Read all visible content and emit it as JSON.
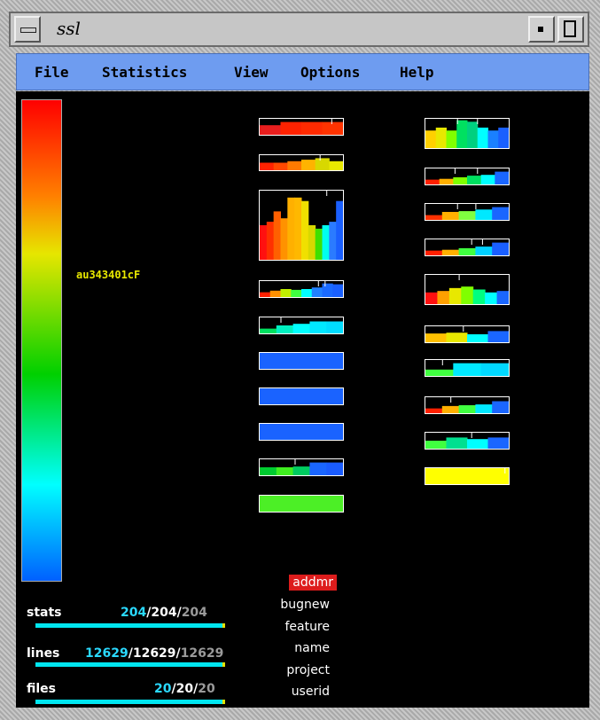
{
  "window": {
    "title": "ssl"
  },
  "menu": {
    "items": [
      "File",
      "Statistics",
      "View",
      "Options",
      "Help"
    ]
  },
  "colorbar": {
    "hover_label": "au343401cF",
    "gradient": [
      "#ff0000",
      "#ff8000",
      "#e6e600",
      "#00d000",
      "#00ffff",
      "#0060ff"
    ]
  },
  "legend": {
    "items": [
      "addmr",
      "bugnew",
      "feature",
      "name",
      "project",
      "userid"
    ],
    "selected": "addmr",
    "selected_color": "#dd1c1c"
  },
  "stats": [
    {
      "label": "stats",
      "a": "204",
      "b": "/204/",
      "c": "204",
      "fill": 1.0
    },
    {
      "label": "lines",
      "a": "12629",
      "b": "/12629/",
      "c": "12629",
      "fill": 1.0
    },
    {
      "label": "files",
      "a": "20",
      "b": "/20/",
      "c": "20",
      "fill": 1.0
    }
  ],
  "histograms": {
    "left": [
      {
        "bars": [
          [
            "#e81e1e",
            0.6
          ],
          [
            "#ff2200",
            0.8
          ],
          [
            "#ff2a00",
            0.8
          ],
          [
            "#ff3300",
            0.8
          ]
        ],
        "ticks": [
          0.86
        ]
      },
      {
        "bars": [
          [
            "#ff2200",
            0.5
          ],
          [
            "#ff4800",
            0.5
          ],
          [
            "#ff7a00",
            0.6
          ],
          [
            "#ffb300",
            0.7
          ],
          [
            "#d8d800",
            0.8
          ],
          [
            "#e8e800",
            0.6
          ]
        ],
        "ticks": [
          0.72
        ]
      },
      {
        "bars": [
          [
            "#ff1010",
            0.5
          ],
          [
            "#ff3000",
            0.55
          ],
          [
            "#ff6000",
            0.7
          ],
          [
            "#ff9200",
            0.6
          ],
          [
            "#ffb000",
            0.9
          ],
          [
            "#ffb800",
            0.9
          ],
          [
            "#f0e000",
            0.85
          ],
          [
            "#d8d800",
            0.5
          ],
          [
            "#40e000",
            0.45
          ],
          [
            "#00ffee",
            0.5
          ],
          [
            "#2b7bff",
            0.55
          ],
          [
            "#1a5fff",
            0.85
          ]
        ],
        "ticks": [
          0.8
        ]
      },
      {
        "bars": [
          [
            "#ff2000",
            0.3
          ],
          [
            "#ff9000",
            0.4
          ],
          [
            "#c0f000",
            0.5
          ],
          [
            "#40ff40",
            0.45
          ],
          [
            "#00ffff",
            0.5
          ],
          [
            "#2080ff",
            0.6
          ],
          [
            "#1a6aff",
            0.85
          ],
          [
            "#1a60ff",
            0.8
          ]
        ],
        "ticks": [
          0.7,
          0.78
        ]
      },
      {
        "bars": [
          [
            "#00e060",
            0.3
          ],
          [
            "#00f0c0",
            0.5
          ],
          [
            "#00ffff",
            0.6
          ],
          [
            "#00e8ff",
            0.75
          ],
          [
            "#00ddff",
            0.75
          ]
        ],
        "ticks": [
          0.25
        ]
      },
      {
        "bars": [
          [
            "#1a63ff",
            1.0
          ]
        ],
        "ticks": []
      },
      {
        "bars": [
          [
            "#1a63ff",
            1.0
          ]
        ],
        "ticks": []
      },
      {
        "bars": [
          [
            "#1a63ff",
            1.0
          ]
        ],
        "ticks": []
      },
      {
        "bars": [
          [
            "#00cc30",
            0.5
          ],
          [
            "#40ee20",
            0.5
          ],
          [
            "#00cc60",
            0.55
          ],
          [
            "#1a66ff",
            0.8
          ],
          [
            "#1a5cff",
            0.8
          ]
        ],
        "ticks": [
          0.42
        ]
      },
      {
        "bars": [
          [
            "#4cef26",
            1.0
          ]
        ],
        "ticks": []
      }
    ],
    "right": [
      {
        "bars": [
          [
            "#ffd000",
            0.6
          ],
          [
            "#e8e800",
            0.7
          ],
          [
            "#80ff00",
            0.6
          ],
          [
            "#00e060",
            0.95
          ],
          [
            "#00d080",
            0.9
          ],
          [
            "#00ffff",
            0.7
          ],
          [
            "#1a80ff",
            0.6
          ],
          [
            "#1a60ff",
            0.7
          ]
        ],
        "ticks": [
          0.38,
          0.62
        ]
      },
      {
        "bars": [
          [
            "#ff2000",
            0.3
          ],
          [
            "#ffb000",
            0.35
          ],
          [
            "#80ff00",
            0.45
          ],
          [
            "#00e060",
            0.55
          ],
          [
            "#00ffff",
            0.6
          ],
          [
            "#1a66ff",
            0.8
          ]
        ],
        "ticks": [
          0.35,
          0.62
        ]
      },
      {
        "bars": [
          [
            "#ff3000",
            0.3
          ],
          [
            "#ffb000",
            0.5
          ],
          [
            "#80ff40",
            0.55
          ],
          [
            "#00e8ff",
            0.65
          ],
          [
            "#1a66ff",
            0.8
          ]
        ],
        "ticks": [
          0.38,
          0.6
        ]
      },
      {
        "bars": [
          [
            "#ff2000",
            0.3
          ],
          [
            "#ffb000",
            0.35
          ],
          [
            "#40ff40",
            0.45
          ],
          [
            "#00d0ff",
            0.55
          ],
          [
            "#1a5fff",
            0.8
          ]
        ],
        "ticks": [
          0.55,
          0.68
        ]
      },
      {
        "bars": [
          [
            "#ff1010",
            0.4
          ],
          [
            "#ffa000",
            0.45
          ],
          [
            "#e8e800",
            0.55
          ],
          [
            "#80ff00",
            0.6
          ],
          [
            "#00ff80",
            0.5
          ],
          [
            "#00ffff",
            0.4
          ],
          [
            "#1a66ff",
            0.45
          ]
        ],
        "ticks": [
          0.4
        ]
      },
      {
        "bars": [
          [
            "#ffc000",
            0.55
          ],
          [
            "#e8e800",
            0.6
          ],
          [
            "#00ffff",
            0.5
          ],
          [
            "#1a66ff",
            0.7
          ]
        ],
        "ticks": [
          0.45
        ]
      },
      {
        "bars": [
          [
            "#40ff40",
            0.4
          ],
          [
            "#00e8ff",
            0.8
          ],
          [
            "#00d8ff",
            0.8
          ]
        ],
        "ticks": [
          0.2
        ]
      },
      {
        "bars": [
          [
            "#ff2000",
            0.3
          ],
          [
            "#ffb000",
            0.45
          ],
          [
            "#40ff40",
            0.5
          ],
          [
            "#00e8ff",
            0.55
          ],
          [
            "#1a66ff",
            0.75
          ]
        ],
        "ticks": [
          0.3
        ]
      },
      {
        "bars": [
          [
            "#40ff40",
            0.5
          ],
          [
            "#00e090",
            0.7
          ],
          [
            "#00ffff",
            0.6
          ],
          [
            "#1a66ff",
            0.7
          ]
        ],
        "ticks": [
          0.55
        ]
      },
      {
        "bars": [
          [
            "#ffff00",
            1.0
          ]
        ],
        "ticks": [
          0.95
        ]
      }
    ]
  }
}
